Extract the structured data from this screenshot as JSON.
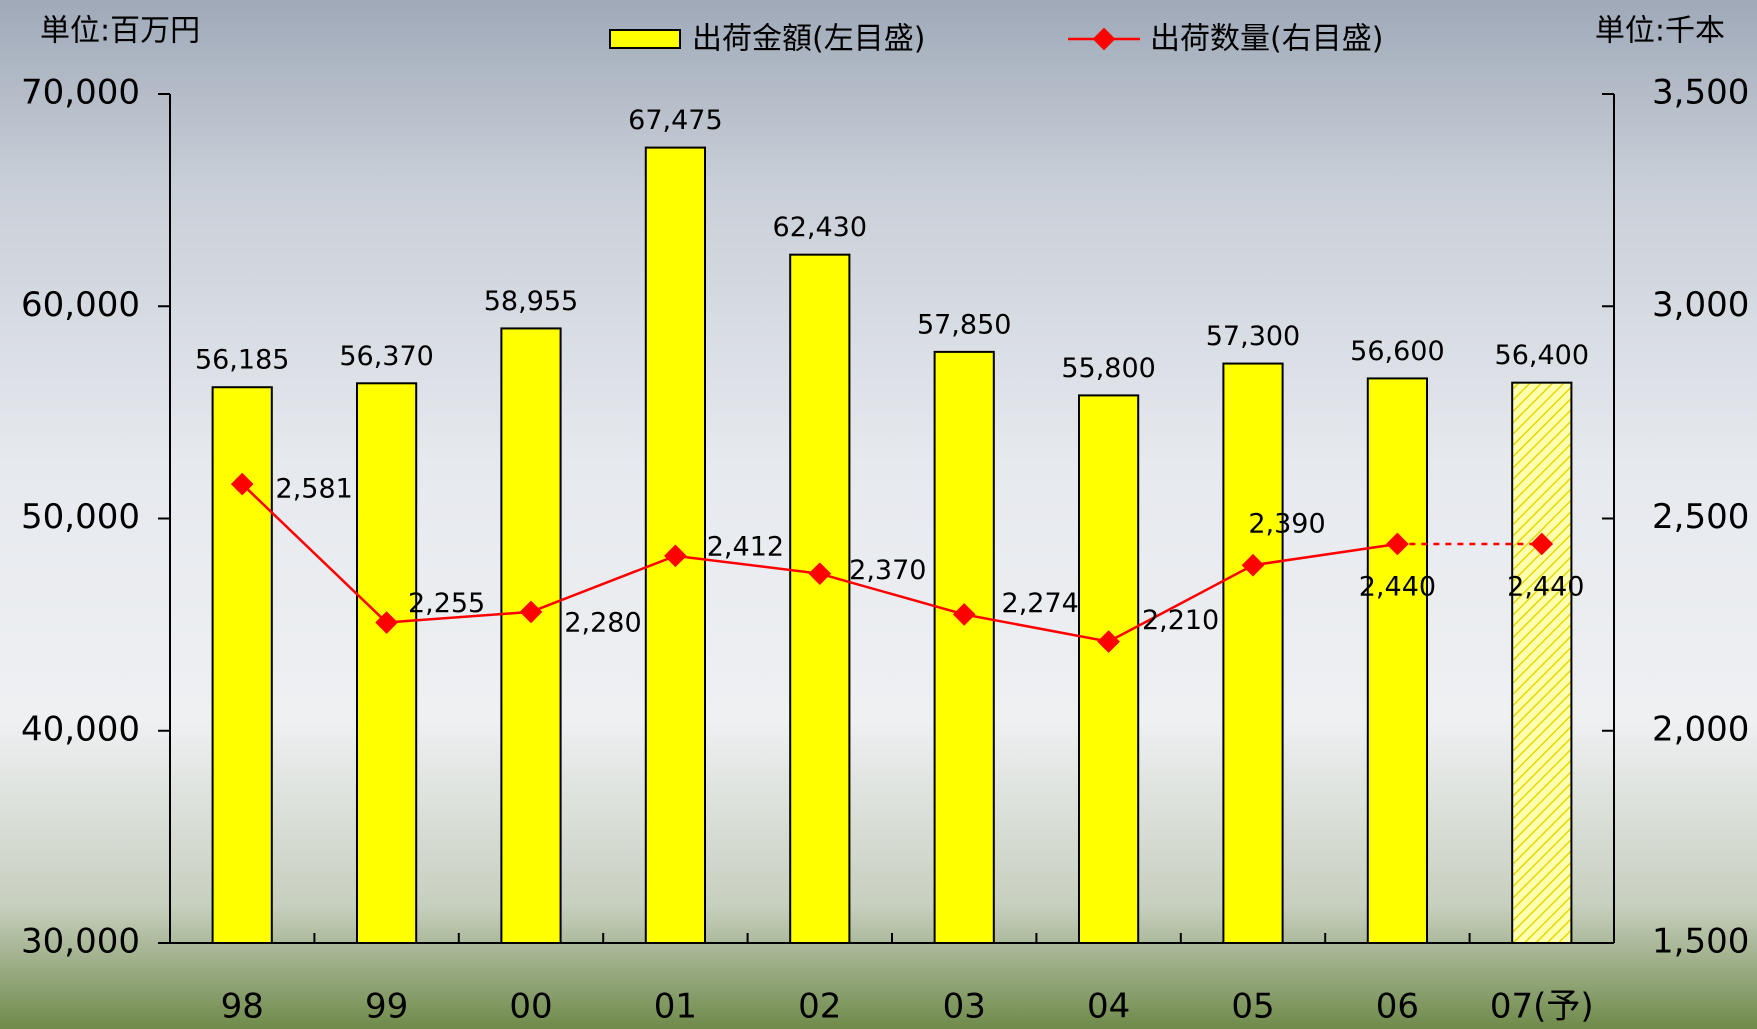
{
  "chart_data": {
    "type": "bar_line",
    "y_unit": "単位:百万円",
    "y2_unit": "単位:千本",
    "categories": [
      "98",
      "99",
      "00",
      "01",
      "02",
      "03",
      "04",
      "05",
      "06",
      "07(予)"
    ],
    "series": [
      {
        "name": "出荷金額(左目盛)",
        "type": "bar",
        "color": "#ffff00",
        "values": [
          56185,
          56370,
          58955,
          67475,
          62430,
          57850,
          55800,
          57300,
          56600,
          56400
        ],
        "value_labels": [
          "56,185",
          "56,370",
          "58,955",
          "67,475",
          "62,430",
          "57,850",
          "55,800",
          "57,300",
          "56,600",
          "56,400"
        ]
      },
      {
        "name": "出荷数量(右目盛)",
        "type": "line",
        "axis": "y2",
        "color": "#ff0000",
        "values": [
          2581,
          2255,
          2280,
          2412,
          2370,
          2274,
          2210,
          2390,
          2440,
          2440
        ],
        "value_labels": [
          "2,581",
          "2,255",
          "2,280",
          "2,412",
          "2,370",
          "2,274",
          "2,210",
          "2,390",
          "2,440",
          "2,440"
        ]
      }
    ],
    "ylim": [
      30000,
      70000
    ],
    "yticks": [
      {
        "value": 30000,
        "label": "30,000"
      },
      {
        "value": 40000,
        "label": "40,000"
      },
      {
        "value": 50000,
        "label": "50,000"
      },
      {
        "value": 60000,
        "label": "60,000"
      },
      {
        "value": 70000,
        "label": "70,000"
      }
    ],
    "y2lim": [
      1500,
      3500
    ],
    "y2ticks": [
      {
        "value": 1500,
        "label": "1,500"
      },
      {
        "value": 2000,
        "label": "2,000"
      },
      {
        "value": 2500,
        "label": "2,500"
      },
      {
        "value": 3000,
        "label": "3,000"
      },
      {
        "value": 3500,
        "label": "3,500"
      }
    ],
    "grid": false
  }
}
